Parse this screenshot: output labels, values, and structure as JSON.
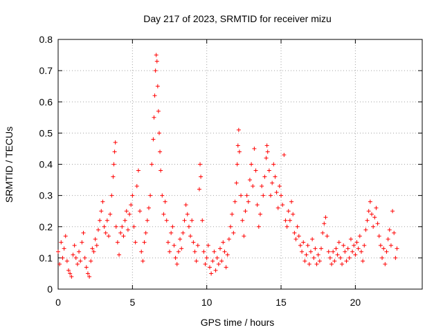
{
  "chart_data": {
    "type": "scatter",
    "title": "Day 217 of 2023, SRMTID for receiver mizu",
    "xlabel": "GPS time / hours",
    "ylabel": "SRMTID / TECUs",
    "xlim": [
      0,
      24.5
    ],
    "ylim": [
      0,
      0.8
    ],
    "x_ticks": [
      0,
      5,
      10,
      15,
      20
    ],
    "x_tick_labels": [
      "0",
      "5",
      "10",
      "15",
      "20"
    ],
    "y_ticks": [
      0,
      0.1,
      0.2,
      0.3,
      0.4,
      0.5,
      0.6,
      0.7,
      0.8
    ],
    "y_tick_labels": [
      "0",
      "0.1",
      "0.2",
      "0.3",
      "0.4",
      "0.5",
      "0.6",
      "0.7",
      "0.8"
    ],
    "grid": true,
    "marker": "plus",
    "series": [
      {
        "name": "SRMTID",
        "color": "#ff0000",
        "points": [
          [
            0.0,
            0.12
          ],
          [
            0.1,
            0.08
          ],
          [
            0.2,
            0.15
          ],
          [
            0.3,
            0.1
          ],
          [
            0.4,
            0.13
          ],
          [
            0.5,
            0.17
          ],
          [
            0.6,
            0.09
          ],
          [
            0.7,
            0.06
          ],
          [
            0.8,
            0.05
          ],
          [
            0.9,
            0.04
          ],
          [
            1.0,
            0.11
          ],
          [
            1.1,
            0.14
          ],
          [
            1.2,
            0.1
          ],
          [
            1.3,
            0.08
          ],
          [
            1.4,
            0.12
          ],
          [
            1.5,
            0.09
          ],
          [
            1.6,
            0.15
          ],
          [
            1.7,
            0.18
          ],
          [
            1.8,
            0.1
          ],
          [
            1.9,
            0.07
          ],
          [
            2.0,
            0.05
          ],
          [
            2.1,
            0.04
          ],
          [
            2.2,
            0.09
          ],
          [
            2.3,
            0.13
          ],
          [
            2.4,
            0.12
          ],
          [
            2.5,
            0.16
          ],
          [
            2.6,
            0.14
          ],
          [
            2.7,
            0.19
          ],
          [
            2.8,
            0.22
          ],
          [
            2.9,
            0.25
          ],
          [
            3.0,
            0.28
          ],
          [
            3.1,
            0.2
          ],
          [
            3.2,
            0.18
          ],
          [
            3.3,
            0.22
          ],
          [
            3.4,
            0.17
          ],
          [
            3.5,
            0.24
          ],
          [
            3.6,
            0.3
          ],
          [
            3.7,
            0.36
          ],
          [
            3.75,
            0.4
          ],
          [
            3.8,
            0.44
          ],
          [
            3.85,
            0.47
          ],
          [
            3.9,
            0.2
          ],
          [
            4.0,
            0.15
          ],
          [
            4.1,
            0.11
          ],
          [
            4.2,
            0.18
          ],
          [
            4.3,
            0.2
          ],
          [
            4.4,
            0.17
          ],
          [
            4.5,
            0.22
          ],
          [
            4.6,
            0.25
          ],
          [
            4.7,
            0.19
          ],
          [
            4.8,
            0.24
          ],
          [
            4.9,
            0.27
          ],
          [
            5.0,
            0.3
          ],
          [
            5.1,
            0.2
          ],
          [
            5.2,
            0.15
          ],
          [
            5.3,
            0.33
          ],
          [
            5.4,
            0.38
          ],
          [
            5.5,
            0.25
          ],
          [
            5.6,
            0.12
          ],
          [
            5.7,
            0.09
          ],
          [
            5.8,
            0.15
          ],
          [
            5.9,
            0.18
          ],
          [
            6.0,
            0.22
          ],
          [
            6.1,
            0.26
          ],
          [
            6.2,
            0.3
          ],
          [
            6.3,
            0.4
          ],
          [
            6.4,
            0.48
          ],
          [
            6.45,
            0.55
          ],
          [
            6.5,
            0.62
          ],
          [
            6.55,
            0.7
          ],
          [
            6.6,
            0.75
          ],
          [
            6.65,
            0.73
          ],
          [
            6.7,
            0.65
          ],
          [
            6.75,
            0.57
          ],
          [
            6.8,
            0.5
          ],
          [
            6.85,
            0.44
          ],
          [
            6.9,
            0.38
          ],
          [
            7.0,
            0.3
          ],
          [
            7.1,
            0.24
          ],
          [
            7.2,
            0.28
          ],
          [
            7.3,
            0.22
          ],
          [
            7.4,
            0.15
          ],
          [
            7.5,
            0.12
          ],
          [
            7.6,
            0.18
          ],
          [
            7.7,
            0.2
          ],
          [
            7.8,
            0.14
          ],
          [
            7.9,
            0.1
          ],
          [
            8.0,
            0.08
          ],
          [
            8.1,
            0.12
          ],
          [
            8.2,
            0.16
          ],
          [
            8.3,
            0.13
          ],
          [
            8.4,
            0.18
          ],
          [
            8.5,
            0.22
          ],
          [
            8.6,
            0.27
          ],
          [
            8.7,
            0.24
          ],
          [
            8.8,
            0.2
          ],
          [
            8.9,
            0.17
          ],
          [
            9.0,
            0.22
          ],
          [
            9.1,
            0.15
          ],
          [
            9.2,
            0.12
          ],
          [
            9.3,
            0.09
          ],
          [
            9.4,
            0.14
          ],
          [
            9.5,
            0.32
          ],
          [
            9.55,
            0.4
          ],
          [
            9.6,
            0.36
          ],
          [
            9.7,
            0.22
          ],
          [
            9.8,
            0.12
          ],
          [
            9.9,
            0.08
          ],
          [
            10.0,
            0.1
          ],
          [
            10.1,
            0.14
          ],
          [
            10.2,
            0.07
          ],
          [
            10.3,
            0.05
          ],
          [
            10.4,
            0.09
          ],
          [
            10.5,
            0.12
          ],
          [
            10.6,
            0.06
          ],
          [
            10.7,
            0.1
          ],
          [
            10.8,
            0.08
          ],
          [
            10.9,
            0.13
          ],
          [
            11.0,
            0.09
          ],
          [
            11.1,
            0.15
          ],
          [
            11.2,
            0.12
          ],
          [
            11.3,
            0.07
          ],
          [
            11.4,
            0.11
          ],
          [
            11.5,
            0.16
          ],
          [
            11.6,
            0.2
          ],
          [
            11.7,
            0.24
          ],
          [
            11.8,
            0.18
          ],
          [
            11.9,
            0.28
          ],
          [
            12.0,
            0.34
          ],
          [
            12.05,
            0.4
          ],
          [
            12.1,
            0.46
          ],
          [
            12.15,
            0.51
          ],
          [
            12.2,
            0.44
          ],
          [
            12.3,
            0.3
          ],
          [
            12.4,
            0.22
          ],
          [
            12.5,
            0.17
          ],
          [
            12.6,
            0.25
          ],
          [
            12.7,
            0.3
          ],
          [
            12.8,
            0.28
          ],
          [
            12.9,
            0.35
          ],
          [
            13.0,
            0.4
          ],
          [
            13.1,
            0.33
          ],
          [
            13.2,
            0.45
          ],
          [
            13.3,
            0.38
          ],
          [
            13.4,
            0.27
          ],
          [
            13.5,
            0.2
          ],
          [
            13.6,
            0.24
          ],
          [
            13.7,
            0.33
          ],
          [
            13.8,
            0.3
          ],
          [
            13.9,
            0.36
          ],
          [
            14.0,
            0.42
          ],
          [
            14.05,
            0.46
          ],
          [
            14.1,
            0.44
          ],
          [
            14.2,
            0.38
          ],
          [
            14.3,
            0.3
          ],
          [
            14.4,
            0.34
          ],
          [
            14.5,
            0.4
          ],
          [
            14.6,
            0.36
          ],
          [
            14.7,
            0.31
          ],
          [
            14.8,
            0.26
          ],
          [
            14.9,
            0.33
          ],
          [
            15.0,
            0.3
          ],
          [
            15.1,
            0.27
          ],
          [
            15.2,
            0.43
          ],
          [
            15.3,
            0.22
          ],
          [
            15.4,
            0.2
          ],
          [
            15.5,
            0.25
          ],
          [
            15.6,
            0.22
          ],
          [
            15.7,
            0.28
          ],
          [
            15.8,
            0.24
          ],
          [
            15.9,
            0.18
          ],
          [
            16.0,
            0.16
          ],
          [
            16.1,
            0.2
          ],
          [
            16.2,
            0.17
          ],
          [
            16.3,
            0.14
          ],
          [
            16.4,
            0.12
          ],
          [
            16.5,
            0.15
          ],
          [
            16.6,
            0.09
          ],
          [
            16.7,
            0.11
          ],
          [
            16.8,
            0.14
          ],
          [
            16.9,
            0.08
          ],
          [
            17.0,
            0.12
          ],
          [
            17.1,
            0.16
          ],
          [
            17.2,
            0.1
          ],
          [
            17.3,
            0.13
          ],
          [
            17.4,
            0.08
          ],
          [
            17.5,
            0.11
          ],
          [
            17.6,
            0.09
          ],
          [
            17.7,
            0.13
          ],
          [
            17.8,
            0.18
          ],
          [
            17.9,
            0.21
          ],
          [
            18.0,
            0.23
          ],
          [
            18.1,
            0.17
          ],
          [
            18.2,
            0.12
          ],
          [
            18.3,
            0.1
          ],
          [
            18.4,
            0.08
          ],
          [
            18.5,
            0.12
          ],
          [
            18.6,
            0.09
          ],
          [
            18.7,
            0.13
          ],
          [
            18.8,
            0.11
          ],
          [
            18.9,
            0.15
          ],
          [
            19.0,
            0.1
          ],
          [
            19.1,
            0.08
          ],
          [
            19.2,
            0.14
          ],
          [
            19.3,
            0.12
          ],
          [
            19.4,
            0.09
          ],
          [
            19.5,
            0.13
          ],
          [
            19.6,
            0.1
          ],
          [
            19.7,
            0.16
          ],
          [
            19.8,
            0.12
          ],
          [
            19.9,
            0.14
          ],
          [
            20.0,
            0.11
          ],
          [
            20.1,
            0.15
          ],
          [
            20.2,
            0.13
          ],
          [
            20.3,
            0.17
          ],
          [
            20.4,
            0.12
          ],
          [
            20.5,
            0.09
          ],
          [
            20.6,
            0.14
          ],
          [
            20.7,
            0.19
          ],
          [
            20.8,
            0.22
          ],
          [
            20.9,
            0.25
          ],
          [
            21.0,
            0.28
          ],
          [
            21.1,
            0.24
          ],
          [
            21.2,
            0.2
          ],
          [
            21.3,
            0.23
          ],
          [
            21.4,
            0.26
          ],
          [
            21.5,
            0.21
          ],
          [
            21.6,
            0.17
          ],
          [
            21.7,
            0.14
          ],
          [
            21.8,
            0.1
          ],
          [
            21.9,
            0.13
          ],
          [
            22.0,
            0.08
          ],
          [
            22.1,
            0.12
          ],
          [
            22.2,
            0.16
          ],
          [
            22.3,
            0.19
          ],
          [
            22.4,
            0.14
          ],
          [
            22.5,
            0.25
          ],
          [
            22.6,
            0.18
          ],
          [
            22.7,
            0.1
          ],
          [
            22.8,
            0.13
          ]
        ]
      }
    ]
  }
}
